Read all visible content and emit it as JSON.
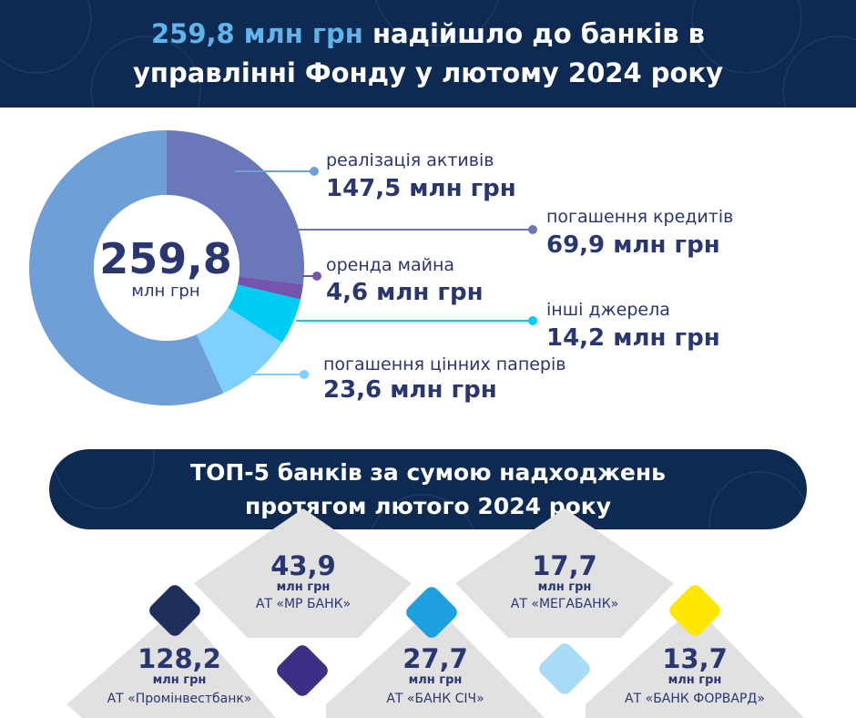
{
  "header": {
    "title_highlight": "259,8 млн грн",
    "title_rest_1": "надійшло до банків в",
    "title_line_2": "управлінні Фонду у лютому 2024 року"
  },
  "donut": {
    "center_value": "259,8",
    "center_unit": "млн грн"
  },
  "chart_data": {
    "type": "pie",
    "title": "259,8 млн грн надійшло до банків в управлінні Фонду у лютому 2024 року",
    "unit": "млн грн",
    "total": 259.8,
    "slices": [
      {
        "name": "реалізація активів",
        "value": 147.5,
        "value_label": "147,5 млн грн",
        "color": "#6e9fd8"
      },
      {
        "name": "погашення кредитів",
        "value": 69.9,
        "value_label": "69,9 млн грн",
        "color": "#6a78b9"
      },
      {
        "name": "оренда майна",
        "value": 4.6,
        "value_label": "4,6 млн грн",
        "color": "#7455ae"
      },
      {
        "name": "інші джерела",
        "value": 14.2,
        "value_label": "14,2 млн грн",
        "color": "#00cdf4"
      },
      {
        "name": "погашення цінних паперів",
        "value": 23.6,
        "value_label": "23,6 млн грн",
        "color": "#7fd0fc"
      }
    ]
  },
  "top5": {
    "title_line_1": "ТОП-5 банків за сумою надходжень",
    "title_line_2": "протягом лютого 2024 року",
    "banks": [
      {
        "value": "128,2",
        "unit": "млн грн",
        "name": "АТ «Промінвестбанк»",
        "color": "#1e2f5c"
      },
      {
        "value": "43,9",
        "unit": "млн грн",
        "name": "АТ «МР БАНК»",
        "color": "#3b2f86"
      },
      {
        "value": "27,7",
        "unit": "млн грн",
        "name": "АТ «БАНК СІЧ»",
        "color": "#1f9ee0"
      },
      {
        "value": "17,7",
        "unit": "млн грн",
        "name": "АТ «МЕГАБАНК»",
        "color": "#a8dcf6"
      },
      {
        "value": "13,7",
        "unit": "млн грн",
        "name": "АТ «БАНК ФОРВАРД»",
        "color": "#ffe600"
      }
    ]
  }
}
